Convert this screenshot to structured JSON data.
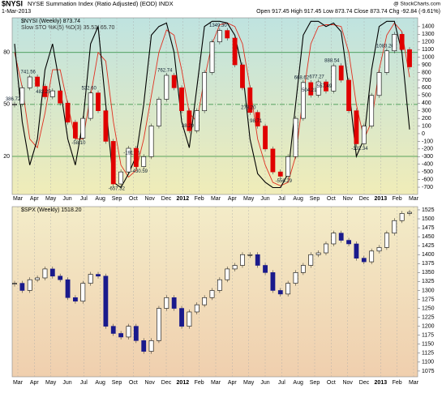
{
  "header": {
    "symbol": "$NYSI",
    "title": "NYSE Summation Index (Ratio Adjusted) (EOD) INDX",
    "date": "1-Mar-2013",
    "quote": "Open 917.45 High 917.45 Low 873.74 Close 873.74 Chg -92.84 (-9.61%)",
    "credit": "@ StockCharts.com"
  },
  "months": [
    "Mar",
    "Apr",
    "May",
    "Jun",
    "Jul",
    "Aug",
    "Sep",
    "Oct",
    "Nov",
    "Dec",
    "2012",
    "Feb",
    "Mar",
    "Apr",
    "May",
    "Jun",
    "Jul",
    "Aug",
    "Sep",
    "Oct",
    "Nov",
    "Dec",
    "2013",
    "Feb",
    "Mar"
  ],
  "chart_data": [
    {
      "type": "candlestick",
      "ylim": [
        -795,
        1515
      ],
      "yticks": [
        1400,
        1300,
        1200,
        1100,
        1000,
        900,
        800,
        700,
        600,
        500,
        400,
        300,
        200,
        100,
        0,
        -100,
        -200,
        -300,
        -400,
        -500,
        -600,
        -700
      ],
      "y2lim": [
        -2,
        100
      ],
      "y2ticks": [
        80,
        50,
        20
      ],
      "series": [
        {
          "name": "$NYSI (Weekly) 873.74",
          "up_color": "#000000",
          "down_color": "#e00000",
          "values": [
            386.72,
            600,
            741.56,
            620,
            482.25,
            560,
            400,
            150,
            -58.1,
            200,
            532.6,
            300,
            -100,
            -657.32,
            -500,
            -191.15,
            -430.59,
            -300,
            100,
            450,
            762.74,
            600,
            300,
            38.29,
            300,
            800,
            1200,
            1349.3,
            1250,
            900,
            600,
            278.2,
            98.71,
            -200,
            -500,
            -556.29,
            -300,
            200,
            668.62,
            504.21,
            677.27,
            557.49,
            888.54,
            700,
            300,
            -132.34,
            100,
            500,
            800,
            1083.26,
            1300,
            1100,
            873.74
          ],
          "value_labels": [
            "386.72",
            null,
            "741.56",
            null,
            "482.25",
            null,
            null,
            null,
            "-58.10",
            null,
            "532.60",
            null,
            null,
            "-657.32",
            null,
            "-191.15",
            "-430.59",
            null,
            null,
            null,
            "762.74",
            null,
            null,
            "38.29",
            null,
            null,
            null,
            "1349.30",
            null,
            null,
            null,
            "278.20",
            "98.71",
            null,
            null,
            "-556.29",
            null,
            null,
            "668.62",
            "504.21",
            "677.27",
            "557.49",
            "888.54",
            null,
            null,
            "-132.34",
            null,
            null,
            null,
            "1083.26",
            null,
            null,
            null
          ]
        }
      ],
      "indicator": {
        "label": "Slow STO %K(5) %D(3) 35.53, 65.70",
        "k": {
          "color": "#000000",
          "values": [
            85,
            40,
            15,
            30,
            70,
            85,
            60,
            30,
            15,
            40,
            85,
            95,
            50,
            5,
            2,
            10,
            20,
            50,
            90,
            95,
            97,
            80,
            40,
            25,
            60,
            95,
            98,
            98,
            97,
            90,
            70,
            30,
            10,
            5,
            2,
            2,
            10,
            50,
            90,
            98,
            98,
            95,
            97,
            92,
            60,
            20,
            30,
            70,
            95,
            98,
            98,
            80,
            35.53
          ]
        },
        "d": {
          "color": "#e03020",
          "values": [
            80,
            60,
            30,
            25,
            45,
            70,
            70,
            50,
            30,
            30,
            55,
            80,
            75,
            40,
            15,
            8,
            12,
            30,
            55,
            80,
            93,
            90,
            70,
            45,
            40,
            65,
            85,
            96,
            97,
            95,
            85,
            60,
            30,
            15,
            5,
            3,
            5,
            20,
            55,
            85,
            95,
            96,
            96,
            95,
            80,
            50,
            30,
            40,
            70,
            90,
            97,
            92,
            65.7
          ]
        }
      }
    },
    {
      "type": "candlestick",
      "ylim": [
        1059,
        1534
      ],
      "yticks": [
        1525,
        1500,
        1475,
        1450,
        1425,
        1400,
        1375,
        1350,
        1325,
        1300,
        1275,
        1250,
        1225,
        1200,
        1175,
        1150,
        1125,
        1100,
        1075
      ],
      "series": [
        {
          "name": "$SPX (Weekly) 1518.20",
          "up_color": "#000000",
          "down_color": "#1a1a8c",
          "values": [
            1320,
            1300,
            1330,
            1335,
            1360,
            1340,
            1330,
            1280,
            1270,
            1320,
            1345,
            1340,
            1200,
            1180,
            1170,
            1200,
            1160,
            1130,
            1160,
            1250,
            1280,
            1250,
            1200,
            1240,
            1260,
            1280,
            1300,
            1330,
            1360,
            1370,
            1400,
            1400,
            1370,
            1350,
            1300,
            1290,
            1320,
            1350,
            1370,
            1400,
            1405,
            1430,
            1460,
            1440,
            1430,
            1390,
            1380,
            1410,
            1420,
            1460,
            1495,
            1515,
            1518.2
          ]
        }
      ]
    }
  ]
}
